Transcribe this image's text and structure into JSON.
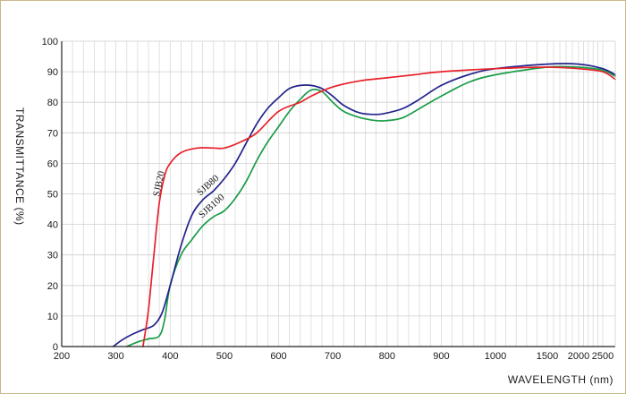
{
  "chart_data": {
    "type": "line",
    "xlabel": "WAVELENGTH (nm)",
    "ylabel": "TRANSMITTANCE  (%)",
    "x_ticks": [
      "200",
      "300",
      "400",
      "500",
      "600",
      "700",
      "800",
      "900",
      "1000",
      "1500",
      "2000",
      "2500"
    ],
    "y_ticks": [
      "100",
      "90",
      "80",
      "70",
      "60",
      "50",
      "40",
      "30",
      "20",
      "10",
      "0"
    ],
    "ylim": [
      0,
      100
    ],
    "grid": true,
    "x_scale": "piecewise: linear 200-1000 nm, compressed 1000-2600 nm",
    "colors": {
      "SJB20": "#e8202a",
      "SJB80": "#23238c",
      "SJB100": "#1a9c48",
      "frame": "#c8b88a"
    },
    "series": [
      {
        "name": "SJB20",
        "x": [
          350,
          360,
          370,
          380,
          390,
          400,
          420,
          450,
          480,
          500,
          530,
          560,
          600,
          640,
          660,
          700,
          750,
          800,
          850,
          900,
          1000,
          1500,
          2000,
          2500,
          2600
        ],
        "y": [
          0,
          12,
          30,
          47,
          56,
          60,
          63.5,
          65,
          65,
          65,
          67,
          70,
          77,
          80,
          82,
          85,
          87,
          88,
          89,
          90,
          91,
          91.5,
          91,
          90,
          87.5
        ]
      },
      {
        "name": "SJB80",
        "x": [
          295,
          310,
          330,
          350,
          370,
          385,
          400,
          420,
          440,
          460,
          480,
          500,
          520,
          540,
          560,
          580,
          600,
          620,
          640,
          660,
          680,
          700,
          720,
          750,
          780,
          800,
          830,
          860,
          900,
          950,
          1000,
          1500,
          2000,
          2500,
          2600
        ],
        "y": [
          0,
          2,
          4,
          5.5,
          7,
          11,
          20,
          33,
          43,
          48,
          51,
          55,
          60,
          66.5,
          73,
          78,
          81.5,
          84.5,
          85.5,
          85.5,
          84.5,
          82,
          79,
          76.5,
          76,
          76.5,
          78,
          81,
          85.5,
          89,
          91,
          92.5,
          92.5,
          91,
          89
        ]
      },
      {
        "name": "SJB100",
        "x": [
          320,
          340,
          360,
          380,
          390,
          400,
          420,
          440,
          460,
          480,
          500,
          520,
          540,
          560,
          580,
          600,
          620,
          640,
          660,
          680,
          700,
          720,
          750,
          780,
          800,
          830,
          870,
          900,
          950,
          1000,
          1500,
          2000,
          2500,
          2600
        ],
        "y": [
          0,
          1.5,
          2.5,
          3.5,
          9,
          20,
          30,
          35,
          39.5,
          42.5,
          44.5,
          48.5,
          54,
          61,
          67,
          72,
          77,
          81,
          84,
          83.5,
          80,
          77,
          75,
          74,
          74,
          75,
          79,
          82,
          86.5,
          89,
          91.5,
          91.5,
          90.5,
          88.5
        ]
      }
    ],
    "annotations": [
      "SJB20",
      "SJB80",
      "SJB100"
    ]
  }
}
